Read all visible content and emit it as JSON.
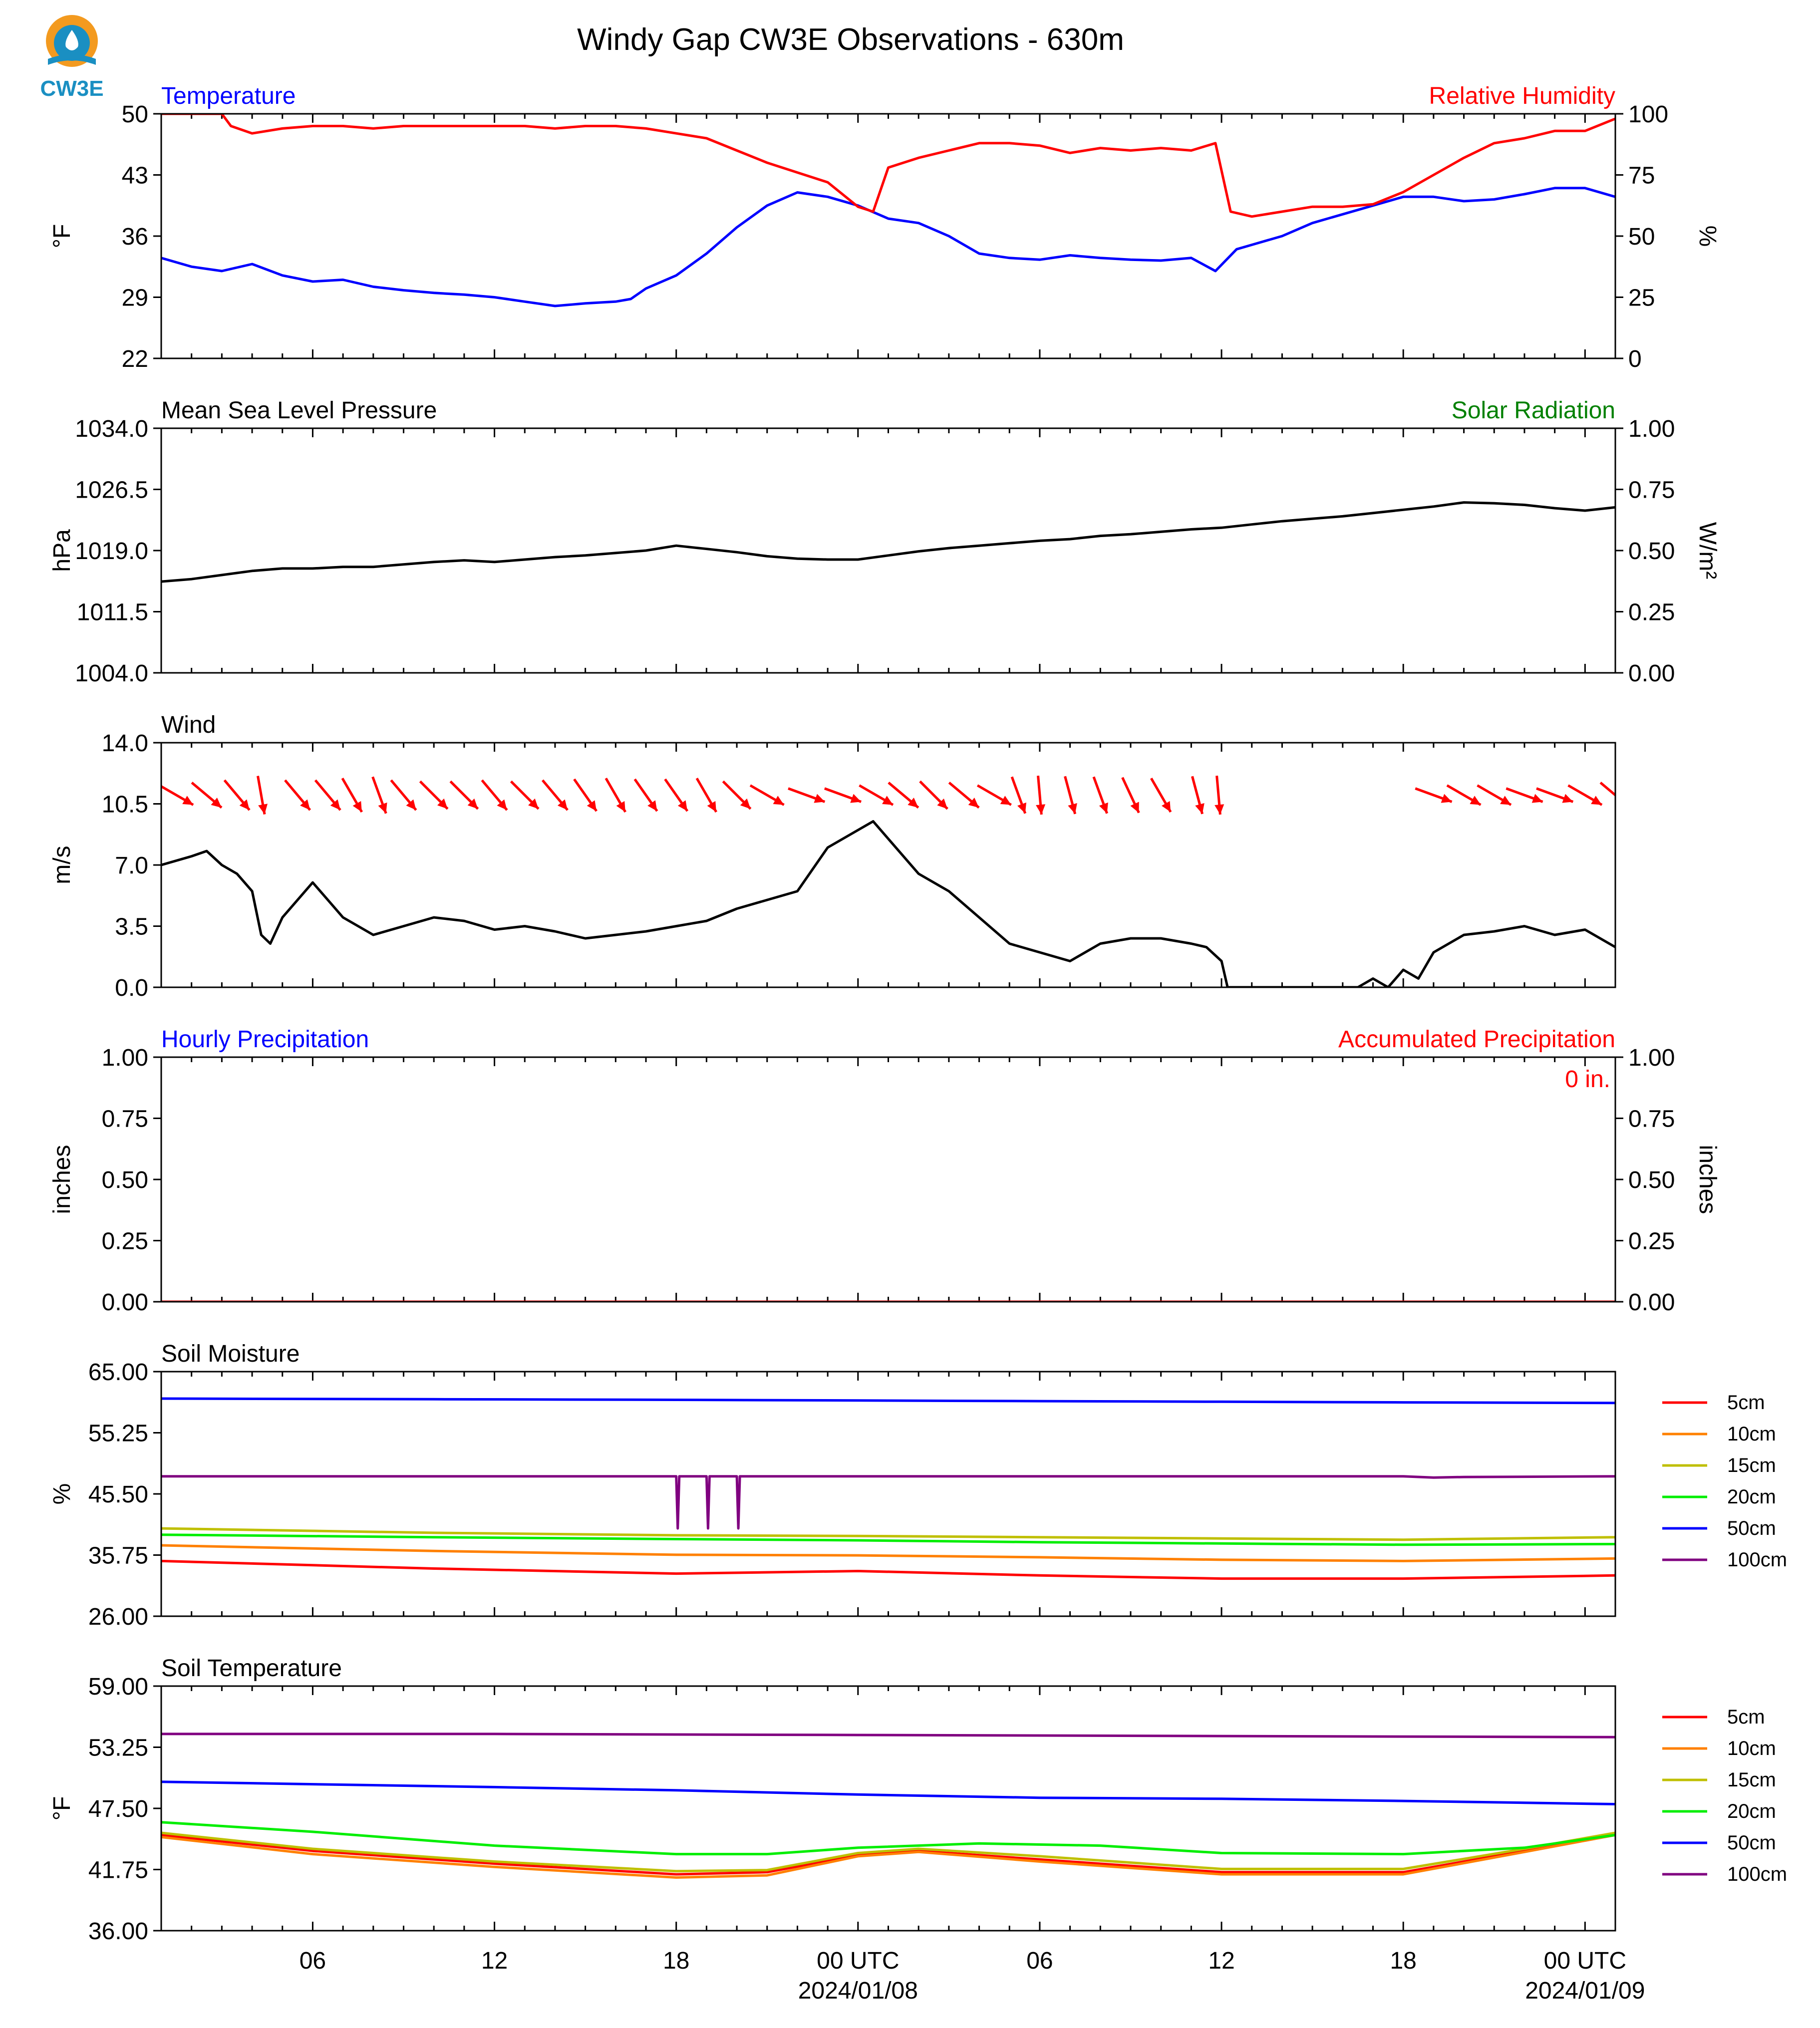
{
  "figure": {
    "title": "Windy Gap CW3E Observations - 630m",
    "logo_text": "CW3E",
    "x_ticks": [
      {
        "label": "06",
        "sub": ""
      },
      {
        "label": "12",
        "sub": ""
      },
      {
        "label": "18",
        "sub": ""
      },
      {
        "label": "00 UTC",
        "sub": "2024/01/08"
      },
      {
        "label": "06",
        "sub": ""
      },
      {
        "label": "12",
        "sub": ""
      },
      {
        "label": "18",
        "sub": ""
      },
      {
        "label": "00 UTC",
        "sub": "2024/01/09"
      }
    ],
    "x_tick_hours": [
      6,
      12,
      18,
      24,
      30,
      36,
      42,
      48
    ],
    "x_range_hours": [
      1,
      49
    ]
  },
  "colors": {
    "temperature": "#0000ff",
    "humidity": "#ff0000",
    "pressure": "#000000",
    "solar": "#008000",
    "wind": "#000000",
    "wind_arrow": "#ff0000",
    "hourly_precip": "#0000ff",
    "accum_precip": "#ff0000",
    "soil": {
      "5cm": "#ff0000",
      "10cm": "#ff8000",
      "15cm": "#bfbf00",
      "20cm": "#00ee00",
      "50cm": "#0000ff",
      "100cm": "#800080"
    }
  },
  "chart_data": [
    {
      "id": "temperature",
      "type": "line",
      "title_left": "Temperature",
      "title_right": "Relative Humidity",
      "ylabel": "°F",
      "ylabel_right": "%",
      "ylim": [
        22,
        50
      ],
      "yticks": [
        "50",
        "43",
        "36",
        "29",
        "22"
      ],
      "ylim_right": [
        0,
        100
      ],
      "yticks_right": [
        "100",
        "75",
        "50",
        "25",
        "0"
      ],
      "series": [
        {
          "key": "temperature",
          "axis": "left",
          "x": [
            1,
            2,
            3,
            4,
            5,
            6,
            7,
            8,
            9,
            10,
            11,
            12,
            13,
            14,
            15,
            16,
            16.5,
            17,
            18,
            19,
            20,
            21,
            22,
            23,
            24,
            25,
            26,
            27,
            28,
            29,
            30,
            31,
            32,
            33,
            34,
            35,
            35.8,
            36.5,
            37,
            38,
            39,
            40,
            41,
            42,
            43,
            44,
            45,
            46,
            47,
            48,
            49
          ],
          "y": [
            33.5,
            32.5,
            32,
            32.8,
            31.5,
            30.8,
            31,
            30.2,
            29.8,
            29.5,
            29.3,
            29,
            28.5,
            28,
            28.3,
            28.5,
            28.8,
            30,
            31.5,
            34,
            37,
            39.5,
            41,
            40.5,
            39.5,
            38,
            37.5,
            36,
            34,
            33.5,
            33.3,
            33.8,
            33.5,
            33.3,
            33.2,
            33.5,
            32,
            34.5,
            35,
            36,
            37.5,
            38.5,
            39.5,
            40.5,
            40.5,
            40,
            40.2,
            40.8,
            41.5,
            41.5,
            40.5
          ]
        },
        {
          "key": "humidity",
          "axis": "right",
          "x": [
            1,
            2,
            3,
            3.3,
            4,
            5,
            6,
            7,
            8,
            9,
            10,
            11,
            12,
            13,
            14,
            15,
            16,
            17,
            18,
            19,
            20,
            21,
            22,
            23,
            24,
            24.5,
            25,
            26,
            27,
            28,
            29,
            30,
            31,
            32,
            33,
            34,
            35,
            35.8,
            36.3,
            37,
            38,
            39,
            40,
            41,
            42,
            43,
            44,
            45,
            46,
            47,
            48,
            49
          ],
          "y": [
            100,
            100,
            100,
            95,
            92,
            94,
            95,
            95,
            94,
            95,
            95,
            95,
            95,
            95,
            94,
            95,
            95,
            94,
            92,
            90,
            85,
            80,
            76,
            72,
            62,
            60,
            78,
            82,
            85,
            88,
            88,
            87,
            84,
            86,
            85,
            86,
            85,
            88,
            60,
            58,
            60,
            62,
            62,
            63,
            68,
            75,
            82,
            88,
            90,
            93,
            93,
            98
          ]
        }
      ]
    },
    {
      "id": "pressure",
      "type": "line",
      "title_left": "Mean Sea Level Pressure",
      "title_right": "Solar Radiation",
      "ylabel": "hPa",
      "ylabel_right": "W/m²",
      "ylim": [
        1004.0,
        1034.0
      ],
      "yticks": [
        "1034.0",
        "1026.5",
        "1019.0",
        "1011.5",
        "1004.0"
      ],
      "ylim_right": [
        0,
        1
      ],
      "yticks_right": [
        "1.00",
        "0.75",
        "0.50",
        "0.25",
        "0.00"
      ],
      "series": [
        {
          "key": "pressure",
          "axis": "left",
          "x": [
            1,
            2,
            3,
            4,
            5,
            6,
            7,
            8,
            9,
            10,
            11,
            12,
            13,
            14,
            15,
            16,
            17,
            18,
            19,
            20,
            21,
            22,
            23,
            24,
            25,
            26,
            27,
            28,
            29,
            30,
            31,
            32,
            33,
            34,
            35,
            36,
            37,
            38,
            39,
            40,
            41,
            42,
            43,
            44,
            45,
            46,
            47,
            48,
            49
          ],
          "y": [
            1015.2,
            1015.5,
            1016.0,
            1016.5,
            1016.8,
            1016.8,
            1017.0,
            1017.0,
            1017.3,
            1017.6,
            1017.8,
            1017.6,
            1017.9,
            1018.2,
            1018.4,
            1018.7,
            1019.0,
            1019.6,
            1019.2,
            1018.8,
            1018.3,
            1018.0,
            1017.9,
            1017.9,
            1018.4,
            1018.9,
            1019.3,
            1019.6,
            1019.9,
            1020.2,
            1020.4,
            1020.8,
            1021.0,
            1021.3,
            1021.6,
            1021.8,
            1022.2,
            1022.6,
            1022.9,
            1023.2,
            1023.6,
            1024.0,
            1024.4,
            1024.9,
            1024.8,
            1024.6,
            1024.2,
            1023.9,
            1024.3
          ]
        }
      ]
    },
    {
      "id": "wind",
      "type": "line",
      "title_left": "Wind",
      "title_right": "",
      "ylabel": "m/s",
      "ylim": [
        0,
        14
      ],
      "yticks": [
        "14.0",
        "10.5",
        "7.0",
        "3.5",
        "0.0"
      ],
      "series": [
        {
          "key": "wind",
          "axis": "left",
          "x": [
            1,
            2,
            2.5,
            3,
            3.5,
            4,
            4.3,
            4.6,
            5,
            5.5,
            6,
            6.5,
            7,
            7.5,
            8,
            9,
            10,
            11,
            12,
            13,
            14,
            15,
            16,
            17,
            18,
            19,
            20,
            21,
            22,
            23,
            24,
            24.5,
            25,
            26,
            27,
            28,
            29,
            30,
            31,
            32,
            33,
            34,
            35,
            35.5,
            36,
            36.2
          ],
          "y": [
            7.0,
            7.5,
            7.8,
            7.0,
            6.5,
            5.5,
            3.0,
            2.5,
            4.0,
            5.0,
            6.0,
            5.0,
            4.0,
            3.5,
            3.0,
            3.5,
            4.0,
            3.8,
            3.3,
            3.5,
            3.2,
            2.8,
            3.0,
            3.2,
            3.5,
            3.8,
            4.5,
            5.0,
            5.5,
            8.0,
            9.0,
            9.5,
            8.5,
            6.5,
            5.5,
            4.0,
            2.5,
            2.0,
            1.5,
            2.5,
            2.8,
            2.8,
            2.5,
            2.3,
            1.5,
            0.0
          ]
        },
        {
          "key": "wind",
          "axis": "left",
          "x": [
            36.2,
            40.5,
            41,
            41.5,
            42,
            42.5,
            43,
            44,
            45,
            46,
            47,
            48,
            49
          ],
          "y": [
            0.0,
            0.0,
            0.5,
            0.0,
            1.0,
            0.5,
            2.0,
            3.0,
            3.2,
            3.5,
            3.0,
            3.3,
            2.3
          ]
        }
      ],
      "arrows_x": [
        1.5,
        2.5,
        3.5,
        4.3,
        5.5,
        6.5,
        7.3,
        8.2,
        9.0,
        10.0,
        11.0,
        12.0,
        13.0,
        14.0,
        15.0,
        16.0,
        17.0,
        18.0,
        19.0,
        20.0,
        21.0,
        22.3,
        23.5,
        24.6,
        25.5,
        26.5,
        27.5,
        28.5,
        29.3,
        30.0,
        31.0,
        32.0,
        33.0,
        34.0,
        35.2,
        35.9,
        43.0,
        44.0,
        45.0,
        46.0,
        47.0,
        48.0,
        49.0
      ],
      "arrows_dir_deg": [
        300,
        310,
        320,
        350,
        320,
        320,
        330,
        340,
        320,
        315,
        315,
        320,
        315,
        320,
        325,
        330,
        325,
        325,
        330,
        315,
        300,
        290,
        290,
        300,
        310,
        315,
        310,
        300,
        340,
        355,
        345,
        340,
        335,
        330,
        345,
        355,
        290,
        300,
        300,
        290,
        290,
        300,
        310
      ]
    },
    {
      "id": "precipitation",
      "type": "line",
      "title_left": "Hourly Precipitation",
      "title_right": "Accumulated Precipitation",
      "annotation": "0 in.",
      "ylabel": "inches",
      "ylabel_right": "inches",
      "ylim": [
        0,
        1
      ],
      "yticks": [
        "1.00",
        "0.75",
        "0.50",
        "0.25",
        "0.00"
      ],
      "ylim_right": [
        0,
        1
      ],
      "yticks_right": [
        "1.00",
        "0.75",
        "0.50",
        "0.25",
        "0.00"
      ],
      "series": [
        {
          "key": "accum_precip",
          "axis": "right",
          "x": [
            1,
            49
          ],
          "y": [
            0,
            0
          ]
        }
      ]
    },
    {
      "id": "soil_moisture",
      "type": "line",
      "title_left": "Soil Moisture",
      "title_right": "",
      "ylabel": "%",
      "ylim": [
        26.0,
        65.0
      ],
      "yticks": [
        "65.00",
        "55.25",
        "45.50",
        "35.75",
        "26.00"
      ],
      "legend": [
        "5cm",
        "10cm",
        "15cm",
        "20cm",
        "50cm",
        "100cm"
      ],
      "series": [
        {
          "key": "5cm",
          "x": [
            1,
            10,
            18,
            24,
            30,
            36,
            42,
            49
          ],
          "y": [
            34.8,
            33.6,
            32.8,
            33.2,
            32.5,
            32.0,
            32.0,
            32.5
          ]
        },
        {
          "key": "10cm",
          "x": [
            1,
            10,
            18,
            24,
            30,
            36,
            42,
            49
          ],
          "y": [
            37.3,
            36.4,
            35.8,
            35.7,
            35.4,
            35.0,
            34.8,
            35.2
          ]
        },
        {
          "key": "15cm",
          "x": [
            1,
            10,
            18,
            24,
            30,
            36,
            42,
            49
          ],
          "y": [
            40.0,
            39.3,
            38.9,
            38.8,
            38.6,
            38.4,
            38.2,
            38.6
          ]
        },
        {
          "key": "20cm",
          "x": [
            1,
            10,
            18,
            24,
            30,
            36,
            42,
            49
          ],
          "y": [
            39.0,
            38.6,
            38.3,
            38.1,
            37.8,
            37.6,
            37.4,
            37.5
          ]
        },
        {
          "key": "50cm",
          "x": [
            1,
            10,
            18,
            24,
            30,
            36,
            42,
            49
          ],
          "y": [
            60.7,
            60.6,
            60.5,
            60.4,
            60.3,
            60.2,
            60.1,
            60.0
          ]
        },
        {
          "key": "100cm",
          "x": [
            1,
            18,
            18.05,
            18.1,
            19,
            19.05,
            19.1,
            20,
            20.05,
            20.1,
            42,
            43,
            44,
            49
          ],
          "y": [
            48.3,
            48.3,
            40.0,
            48.3,
            48.3,
            40.0,
            48.3,
            48.3,
            40.0,
            48.3,
            48.3,
            48.1,
            48.2,
            48.3
          ]
        }
      ]
    },
    {
      "id": "soil_temperature",
      "type": "line",
      "title_left": "Soil Temperature",
      "title_right": "",
      "ylabel": "°F",
      "ylim": [
        36.0,
        59.0
      ],
      "yticks": [
        "59.00",
        "53.25",
        "47.50",
        "41.75",
        "36.00"
      ],
      "legend": [
        "5cm",
        "10cm",
        "15cm",
        "20cm",
        "50cm",
        "100cm"
      ],
      "series": [
        {
          "key": "5cm",
          "x": [
            1,
            6,
            12,
            18,
            21,
            24,
            26,
            30,
            36,
            42,
            46,
            49
          ],
          "y": [
            45.0,
            43.5,
            42.3,
            41.3,
            41.5,
            43.1,
            43.5,
            42.7,
            41.5,
            41.5,
            43.5,
            45.0
          ]
        },
        {
          "key": "10cm",
          "x": [
            1,
            6,
            12,
            18,
            21,
            24,
            26,
            30,
            36,
            42,
            46,
            49
          ],
          "y": [
            44.8,
            43.2,
            42.0,
            41.0,
            41.2,
            43.0,
            43.4,
            42.5,
            41.3,
            41.3,
            43.4,
            45.0
          ]
        },
        {
          "key": "15cm",
          "x": [
            1,
            6,
            12,
            18,
            21,
            24,
            26,
            30,
            36,
            42,
            46,
            49
          ],
          "y": [
            45.2,
            43.7,
            42.5,
            41.6,
            41.7,
            43.3,
            43.7,
            43.0,
            41.8,
            41.8,
            43.7,
            45.2
          ]
        },
        {
          "key": "20cm",
          "x": [
            1,
            6,
            12,
            18,
            21,
            24,
            28,
            32,
            36,
            42,
            46,
            49
          ],
          "y": [
            46.2,
            45.3,
            44.0,
            43.2,
            43.2,
            43.8,
            44.2,
            44.0,
            43.3,
            43.2,
            43.8,
            45.0
          ]
        },
        {
          "key": "50cm",
          "x": [
            1,
            12,
            18,
            24,
            30,
            36,
            42,
            49
          ],
          "y": [
            50.0,
            49.5,
            49.2,
            48.8,
            48.5,
            48.4,
            48.2,
            47.9
          ]
        },
        {
          "key": "100cm",
          "x": [
            1,
            12,
            24,
            36,
            49
          ],
          "y": [
            54.5,
            54.5,
            54.4,
            54.3,
            54.2
          ]
        }
      ]
    }
  ]
}
